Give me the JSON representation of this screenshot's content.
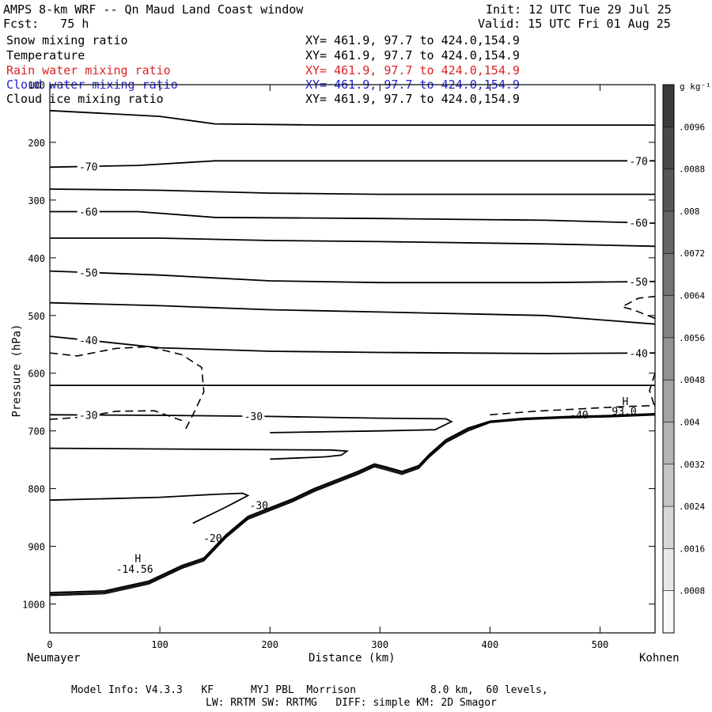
{
  "header": {
    "title_left": "AMPS 8-km WRF -- Qn Maud Land Coast window",
    "forecast": "Fcst:   75 h",
    "init": "Init: 12 UTC Tue 29 Jul 25",
    "valid": "Valid: 15 UTC Fri 01 Aug 25"
  },
  "fields": [
    {
      "name": "Snow mixing ratio",
      "xy": "XY= 461.9, 97.7 to 424.0,154.9",
      "color": "#000000"
    },
    {
      "name": "Temperature",
      "xy": "XY= 461.9, 97.7 to 424.0,154.9",
      "color": "#000000"
    },
    {
      "name": "Rain water mixing ratio",
      "xy": "XY= 461.9, 97.7 to 424.0,154.9",
      "color": "#dd2222"
    },
    {
      "name": "Cloud water mixing ratio",
      "xy": "XY= 461.9, 97.7 to 424.0,154.9",
      "color": "#2222cc"
    },
    {
      "name": "Cloud ice mixing ratio",
      "xy": "XY= 461.9, 97.7 to 424.0,154.9",
      "color": "#000000"
    }
  ],
  "footer": {
    "line1": "Model Info: V4.3.3   KF      MYJ PBL  Morrison            8.0 km,  60 levels,",
    "line2": "LW: RRTM SW: RRTMG   DIFF: simple KM: 2D Smagor"
  },
  "chart_data": {
    "type": "contour",
    "ylabel": "Pressure (hPa)",
    "xlabel": "Distance (km)",
    "x_left_label": "Neumayer",
    "x_right_label": "Kohnen",
    "xlim": [
      0,
      550
    ],
    "ylim": [
      1050,
      100
    ],
    "x_ticks": [
      0,
      100,
      200,
      300,
      400,
      500
    ],
    "y_ticks": [
      100,
      200,
      300,
      400,
      500,
      600,
      700,
      800,
      900,
      1000
    ],
    "colorbar": {
      "unit": "g kg⁻¹",
      "ticks": [
        ".0096",
        ".0088",
        ".008",
        ".0072",
        ".0064",
        ".0056",
        ".0048",
        ".004",
        ".0032",
        ".0024",
        ".0016",
        ".0008"
      ],
      "colors": [
        "#3a3a3a",
        "#484848",
        "#565656",
        "#646464",
        "#737373",
        "#828282",
        "#929292",
        "#a2a2a2",
        "#b3b3b3",
        "#c4c4c4",
        "#d6d6d6",
        "#e8e8e8",
        "#f8f8f8"
      ]
    },
    "temperature_contours": [
      {
        "label": "",
        "points": [
          [
            0,
            145
          ],
          [
            100,
            155
          ],
          [
            150,
            168
          ],
          [
            250,
            170
          ],
          [
            400,
            170
          ],
          [
            550,
            170
          ]
        ]
      },
      {
        "label": "-70",
        "points": [
          [
            0,
            243
          ],
          [
            80,
            240
          ],
          [
            150,
            232
          ],
          [
            250,
            232
          ],
          [
            400,
            232
          ],
          [
            550,
            232
          ]
        ]
      },
      {
        "label": "",
        "points": [
          [
            0,
            281
          ],
          [
            100,
            283
          ],
          [
            200,
            288
          ],
          [
            300,
            290
          ],
          [
            450,
            290
          ],
          [
            550,
            290
          ]
        ]
      },
      {
        "label": "-60",
        "points": [
          [
            0,
            320
          ],
          [
            80,
            320
          ],
          [
            150,
            330
          ],
          [
            300,
            332
          ],
          [
            450,
            335
          ],
          [
            550,
            340
          ]
        ]
      },
      {
        "label": "",
        "points": [
          [
            0,
            366
          ],
          [
            100,
            366
          ],
          [
            200,
            370
          ],
          [
            300,
            372
          ],
          [
            450,
            376
          ],
          [
            550,
            380
          ]
        ]
      },
      {
        "label": "-50",
        "points": [
          [
            0,
            423
          ],
          [
            100,
            430
          ],
          [
            200,
            440
          ],
          [
            300,
            443
          ],
          [
            450,
            443
          ],
          [
            550,
            441
          ]
        ]
      },
      {
        "label": "",
        "points": [
          [
            0,
            478
          ],
          [
            100,
            483
          ],
          [
            200,
            490
          ],
          [
            300,
            494
          ],
          [
            450,
            500
          ],
          [
            550,
            515
          ]
        ]
      },
      {
        "label": "-40",
        "points": [
          [
            0,
            536
          ],
          [
            50,
            546
          ],
          [
            100,
            556
          ],
          [
            200,
            562
          ],
          [
            300,
            564
          ],
          [
            450,
            566
          ],
          [
            550,
            565
          ]
        ]
      },
      {
        "label": "",
        "points": [
          [
            0,
            621
          ],
          [
            200,
            621
          ],
          [
            400,
            621
          ],
          [
            550,
            621
          ]
        ]
      },
      {
        "label": "-30",
        "points": [
          [
            0,
            672
          ],
          [
            100,
            673
          ],
          [
            200,
            675
          ],
          [
            300,
            678
          ],
          [
            360,
            679
          ],
          [
            365,
            684
          ],
          [
            350,
            698
          ],
          [
            300,
            700
          ],
          [
            200,
            703
          ]
        ]
      },
      {
        "label": "",
        "points": [
          [
            0,
            730
          ],
          [
            150,
            732
          ],
          [
            255,
            733
          ],
          [
            270,
            735
          ],
          [
            265,
            742
          ],
          [
            250,
            745
          ],
          [
            200,
            749
          ]
        ]
      },
      {
        "label": "",
        "points": [
          [
            0,
            820
          ],
          [
            100,
            815
          ],
          [
            150,
            810
          ],
          [
            175,
            808
          ],
          [
            180,
            812
          ],
          [
            160,
            832
          ],
          [
            130,
            860
          ]
        ]
      }
    ],
    "terrain_surface_hpa": [
      [
        0,
        980
      ],
      [
        50,
        977
      ],
      [
        90,
        960
      ],
      [
        120,
        933
      ],
      [
        140,
        920
      ],
      [
        160,
        880
      ],
      [
        180,
        848
      ],
      [
        200,
        833
      ],
      [
        220,
        818
      ],
      [
        240,
        800
      ],
      [
        260,
        785
      ],
      [
        280,
        770
      ],
      [
        295,
        757
      ],
      [
        305,
        762
      ],
      [
        320,
        770
      ],
      [
        335,
        760
      ],
      [
        345,
        740
      ],
      [
        360,
        715
      ],
      [
        380,
        695
      ],
      [
        400,
        683
      ],
      [
        430,
        678
      ],
      [
        470,
        675
      ],
      [
        510,
        673
      ],
      [
        550,
        670
      ]
    ],
    "dashed_contours": [
      [
        [
          0,
          565
        ],
        [
          25,
          570
        ],
        [
          60,
          557
        ],
        [
          90,
          554
        ],
        [
          120,
          568
        ],
        [
          138,
          590
        ],
        [
          140,
          632
        ],
        [
          130,
          672
        ],
        [
          122,
          702
        ]
      ],
      [
        [
          0,
          680
        ],
        [
          30,
          676
        ],
        [
          60,
          666
        ],
        [
          95,
          665
        ],
        [
          120,
          682
        ]
      ],
      [
        [
          550,
          505
        ],
        [
          530,
          490
        ],
        [
          520,
          485
        ],
        [
          535,
          470
        ],
        [
          550,
          467
        ]
      ],
      [
        [
          550,
          600
        ],
        [
          545,
          630
        ],
        [
          550,
          660
        ]
      ],
      [
        [
          400,
          672
        ],
        [
          440,
          666
        ],
        [
          480,
          662
        ],
        [
          520,
          658
        ],
        [
          550,
          656
        ]
      ]
    ],
    "annotations": [
      {
        "text": "H",
        "x": 80,
        "y": 922
      },
      {
        "text": "-14.56",
        "x": 77,
        "y": 940
      },
      {
        "text": "H",
        "x": 523,
        "y": 650
      },
      {
        "text": "93.0",
        "x": 522,
        "y": 667
      },
      {
        "text": "-20",
        "x": 148,
        "y": 887
      },
      {
        "text": "-30",
        "x": 190,
        "y": 830
      },
      {
        "text": "-40",
        "x": 481,
        "y": 673
      }
    ]
  }
}
